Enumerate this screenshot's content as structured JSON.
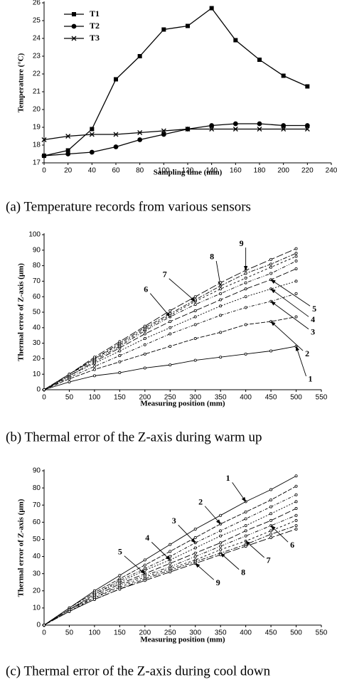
{
  "chart_data": [
    {
      "type": "line",
      "caption": "(a)   Temperature records from various sensors",
      "xlabel": "Sampling time (min)",
      "ylabel": "Temperature (°C)",
      "x": [
        0,
        20,
        40,
        60,
        80,
        100,
        120,
        140,
        160,
        180,
        200,
        220
      ],
      "xlim": [
        0,
        240
      ],
      "xticks": [
        0,
        20,
        40,
        60,
        80,
        100,
        120,
        140,
        160,
        180,
        200,
        220,
        240
      ],
      "ylim": [
        17,
        26
      ],
      "yticks": [
        17,
        18,
        19,
        20,
        21,
        22,
        23,
        24,
        25,
        26
      ],
      "legend": "upper left",
      "series": [
        {
          "name": "T1",
          "color": "#000000",
          "marker": "square",
          "values": [
            17.4,
            17.7,
            18.9,
            21.7,
            23.0,
            24.5,
            24.7,
            25.7,
            23.9,
            22.8,
            21.9,
            21.3
          ]
        },
        {
          "name": "T2",
          "color": "#000000",
          "marker": "circle",
          "values": [
            17.4,
            17.5,
            17.6,
            17.9,
            18.3,
            18.6,
            18.9,
            19.1,
            19.2,
            19.2,
            19.1,
            19.1
          ]
        },
        {
          "name": "T3",
          "color": "#000000",
          "marker": "x",
          "values": [
            18.3,
            18.5,
            18.6,
            18.6,
            18.7,
            18.8,
            18.9,
            18.9,
            18.9,
            18.9,
            18.9,
            18.9
          ]
        }
      ]
    },
    {
      "type": "line",
      "caption": "(b)   Thermal error of the Z-axis during warm up",
      "xlabel": "Measuring position (mm)",
      "ylabel": "Thermal error of Z-axis (μm)",
      "x": [
        0,
        50,
        100,
        150,
        200,
        250,
        300,
        350,
        400,
        450,
        500
      ],
      "xlim": [
        0,
        550
      ],
      "xticks": [
        0,
        50,
        100,
        150,
        200,
        250,
        300,
        350,
        400,
        450,
        500,
        550
      ],
      "ylim": [
        0,
        100
      ],
      "yticks": [
        0,
        10,
        20,
        30,
        40,
        50,
        60,
        70,
        80,
        90,
        100
      ],
      "series": [
        {
          "name": "1",
          "color": "#000000",
          "marker": "circle",
          "values": [
            0,
            5,
            9,
            11,
            14,
            16,
            19,
            21,
            23,
            25,
            28
          ]
        },
        {
          "name": "2",
          "color": "#000000",
          "marker": "circle",
          "values": [
            0,
            7,
            13,
            18,
            23,
            28,
            33,
            37,
            42,
            44,
            47
          ]
        },
        {
          "name": "3",
          "color": "#000000",
          "marker": "circle",
          "values": [
            0,
            8,
            15,
            22,
            29,
            36,
            42,
            48,
            53,
            57,
            62
          ]
        },
        {
          "name": "4",
          "color": "#000000",
          "marker": "circle",
          "values": [
            0,
            9,
            17,
            25,
            33,
            40,
            47,
            54,
            60,
            65,
            70
          ]
        },
        {
          "name": "5",
          "color": "#000000",
          "marker": "circle",
          "values": [
            0,
            9,
            18,
            27,
            36,
            44,
            51,
            58,
            65,
            71,
            78
          ]
        },
        {
          "name": "6",
          "color": "#000000",
          "marker": "circle",
          "values": [
            0,
            10,
            19,
            28,
            38,
            47,
            55,
            62,
            69,
            75,
            83
          ]
        },
        {
          "name": "7",
          "color": "#000000",
          "marker": "circle",
          "values": [
            0,
            10,
            20,
            29,
            39,
            48,
            57,
            65,
            72,
            79,
            86
          ]
        },
        {
          "name": "8",
          "color": "#000000",
          "marker": "circle",
          "values": [
            0,
            10,
            20,
            30,
            40,
            49,
            58,
            67,
            75,
            81,
            88
          ]
        },
        {
          "name": "9",
          "color": "#000000",
          "marker": "circle",
          "values": [
            0,
            10,
            21,
            31,
            41,
            51,
            60,
            69,
            77,
            84,
            91
          ]
        }
      ]
    },
    {
      "type": "line",
      "caption": "(c)   Thermal error of the Z-axis during cool down",
      "xlabel": "Measuring position (mm)",
      "ylabel": "Thermal error of Z-axis (μm)",
      "x": [
        0,
        50,
        100,
        150,
        200,
        250,
        300,
        350,
        400,
        450,
        500
      ],
      "xlim": [
        0,
        550
      ],
      "xticks": [
        0,
        50,
        100,
        150,
        200,
        250,
        300,
        350,
        400,
        450,
        500,
        550
      ],
      "ylim": [
        0,
        90
      ],
      "yticks": [
        0,
        10,
        20,
        30,
        40,
        50,
        60,
        70,
        80,
        90
      ],
      "series": [
        {
          "name": "1",
          "color": "#000000",
          "marker": "circle",
          "values": [
            0,
            10,
            20,
            29,
            38,
            47,
            56,
            64,
            72,
            79,
            87
          ]
        },
        {
          "name": "2",
          "color": "#000000",
          "marker": "circle",
          "values": [
            0,
            10,
            19,
            27,
            35,
            43,
            51,
            59,
            66,
            73,
            81
          ]
        },
        {
          "name": "3",
          "color": "#000000",
          "marker": "circle",
          "values": [
            0,
            9,
            18,
            26,
            33,
            40,
            48,
            55,
            62,
            69,
            76
          ]
        },
        {
          "name": "4",
          "color": "#000000",
          "marker": "circle",
          "values": [
            0,
            9,
            18,
            25,
            32,
            38,
            45,
            52,
            58,
            65,
            72
          ]
        },
        {
          "name": "5",
          "color": "#000000",
          "marker": "circle",
          "values": [
            0,
            9,
            17,
            24,
            30,
            36,
            42,
            48,
            55,
            61,
            68
          ]
        },
        {
          "name": "6",
          "color": "#000000",
          "marker": "circle",
          "values": [
            0,
            9,
            16,
            23,
            29,
            34,
            40,
            46,
            52,
            58,
            64
          ]
        },
        {
          "name": "7",
          "color": "#000000",
          "marker": "circle",
          "values": [
            0,
            8,
            16,
            22,
            28,
            33,
            38,
            44,
            49,
            55,
            61
          ]
        },
        {
          "name": "8",
          "color": "#000000",
          "marker": "circle",
          "values": [
            0,
            8,
            15,
            21,
            27,
            32,
            37,
            42,
            47,
            53,
            58
          ]
        },
        {
          "name": "9",
          "color": "#000000",
          "marker": "circle",
          "values": [
            0,
            8,
            15,
            21,
            26,
            31,
            36,
            41,
            46,
            51,
            56
          ]
        }
      ]
    }
  ]
}
